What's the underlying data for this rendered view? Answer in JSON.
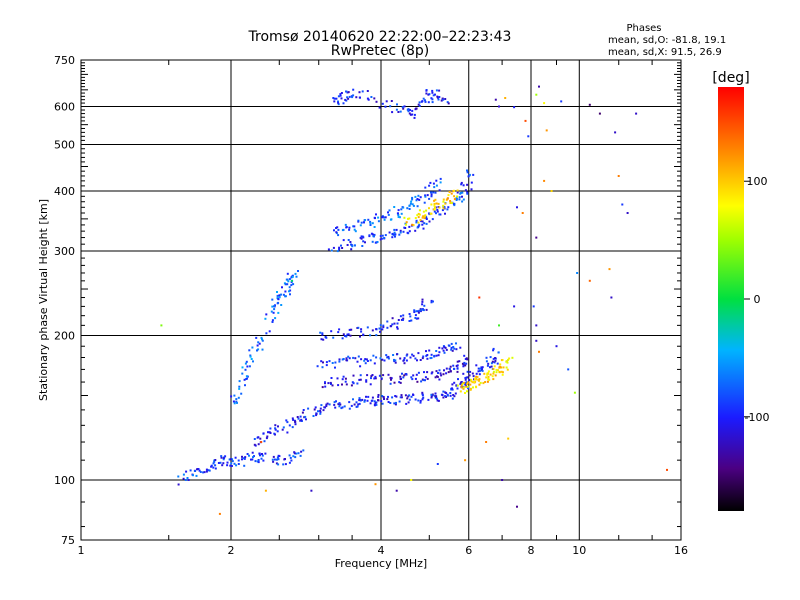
{
  "chart_data": {
    "type": "scatter",
    "title": "Tromsø 20140620 22:22:00–22:23:43",
    "subtitle": "RwPretec (8p)",
    "xlabel": "Frequency [MHz]",
    "ylabel": "Stationary phase Virtual Height [km]",
    "x_scale": "log",
    "y_scale": "log",
    "xlim": [
      1,
      16
    ],
    "ylim": [
      75,
      750
    ],
    "x_ticks": [
      1,
      2,
      4,
      6,
      8,
      10,
      16
    ],
    "y_ticks": [
      75,
      100,
      200,
      300,
      400,
      500,
      600,
      750
    ],
    "x_grid": [
      2,
      4,
      6,
      8,
      10
    ],
    "y_grid": [
      100,
      200,
      300,
      400,
      500,
      600
    ],
    "grid": true,
    "phase_stats": {
      "heading": "Phases",
      "o_line": "mean, sd,O: -81.8, 19.1",
      "x_line": "mean, sd,X:  91.5, 26.9"
    },
    "colorbar": {
      "label": "[deg]",
      "range": [
        -180,
        180
      ],
      "ticks": [
        100,
        0,
        -100
      ],
      "colormap": "rainbow (black-purple-blue-cyan-green-yellow-orange-red)"
    },
    "traces": [
      {
        "name_visible": false,
        "points": [
          [
            1.6,
            100
          ],
          [
            1.7,
            104
          ],
          [
            1.85,
            108
          ],
          [
            1.95,
            110
          ],
          [
            2.05,
            109
          ],
          [
            2.2,
            112
          ],
          [
            2.4,
            111
          ],
          [
            2.6,
            110
          ],
          [
            2.8,
            113
          ]
        ],
        "phase": -90
      },
      {
        "name_visible": false,
        "points": [
          [
            2.2,
            120
          ],
          [
            2.4,
            125
          ],
          [
            2.6,
            130
          ],
          [
            2.8,
            136
          ],
          [
            3.0,
            140
          ],
          [
            3.2,
            143
          ],
          [
            3.5,
            145
          ],
          [
            3.8,
            146
          ],
          [
            4.0,
            147
          ],
          [
            4.3,
            147
          ],
          [
            4.6,
            148
          ],
          [
            5.0,
            149
          ],
          [
            5.3,
            150
          ],
          [
            5.6,
            153
          ],
          [
            5.8,
            158
          ],
          [
            6.0,
            163
          ],
          [
            6.3,
            168
          ],
          [
            6.6,
            175
          ],
          [
            6.9,
            185
          ]
        ],
        "phase": -100
      },
      {
        "name_visible": false,
        "points": [
          [
            5.8,
            155
          ],
          [
            6.0,
            157
          ],
          [
            6.2,
            159
          ],
          [
            6.5,
            162
          ],
          [
            6.8,
            167
          ],
          [
            7.0,
            172
          ],
          [
            7.2,
            180
          ]
        ],
        "phase": 95
      },
      {
        "name_visible": false,
        "points": [
          [
            3.0,
            160
          ],
          [
            3.4,
            161
          ],
          [
            3.8,
            162
          ],
          [
            4.2,
            162
          ],
          [
            4.6,
            163
          ],
          [
            5.0,
            165
          ],
          [
            5.4,
            168
          ],
          [
            5.7,
            173
          ],
          [
            6.0,
            180
          ]
        ],
        "phase": -110
      },
      {
        "name_visible": false,
        "points": [
          [
            3.0,
            175
          ],
          [
            3.4,
            176
          ],
          [
            3.8,
            177
          ],
          [
            4.2,
            178
          ],
          [
            4.6,
            180
          ],
          [
            5.0,
            183
          ],
          [
            5.4,
            187
          ],
          [
            5.7,
            192
          ]
        ],
        "phase": -95
      },
      {
        "name_visible": false,
        "points": [
          [
            3.0,
            200
          ],
          [
            3.4,
            202
          ],
          [
            3.8,
            205
          ],
          [
            4.2,
            210
          ],
          [
            4.5,
            218
          ],
          [
            4.8,
            225
          ],
          [
            5.0,
            235
          ]
        ],
        "phase": -100
      },
      {
        "name_visible": false,
        "points": [
          [
            3.2,
            305
          ],
          [
            3.5,
            312
          ],
          [
            3.8,
            318
          ],
          [
            4.1,
            322
          ],
          [
            4.4,
            330
          ],
          [
            4.7,
            340
          ],
          [
            5.0,
            352
          ],
          [
            5.3,
            365
          ],
          [
            5.6,
            380
          ],
          [
            5.9,
            400
          ],
          [
            6.1,
            440
          ]
        ],
        "phase": -90
      },
      {
        "name_visible": false,
        "points": [
          [
            3.2,
            330
          ],
          [
            3.5,
            336
          ],
          [
            3.8,
            345
          ],
          [
            4.1,
            352
          ],
          [
            4.4,
            365
          ],
          [
            4.7,
            380
          ],
          [
            5.0,
            398
          ],
          [
            5.3,
            420
          ]
        ],
        "phase": -80
      },
      {
        "name_visible": false,
        "points": [
          [
            4.5,
            345
          ],
          [
            4.8,
            355
          ],
          [
            5.1,
            368
          ],
          [
            5.4,
            382
          ],
          [
            5.7,
            400
          ]
        ],
        "phase": 95
      },
      {
        "name_visible": false,
        "points": [
          [
            3.2,
            610
          ],
          [
            3.4,
            630
          ],
          [
            3.6,
            640
          ],
          [
            4.2,
            600
          ],
          [
            4.6,
            580
          ],
          [
            4.9,
            620
          ],
          [
            5.1,
            640
          ],
          [
            5.4,
            610
          ]
        ],
        "phase": -100
      },
      {
        "name_visible": false,
        "points": [
          [
            2.4,
            220
          ],
          [
            2.5,
            240
          ],
          [
            2.6,
            255
          ],
          [
            2.7,
            270
          ],
          [
            2.3,
            200
          ],
          [
            2.2,
            180
          ],
          [
            2.1,
            160
          ],
          [
            2.0,
            140
          ]
        ],
        "phase": -75
      }
    ],
    "isolated_points": [
      [
        1.45,
        210,
        40
      ],
      [
        1.9,
        85,
        130
      ],
      [
        2.35,
        95,
        110
      ],
      [
        2.3,
        120,
        150
      ],
      [
        2.65,
        260,
        -10
      ],
      [
        2.9,
        95,
        -120
      ],
      [
        3.9,
        98,
        120
      ],
      [
        4.3,
        95,
        -130
      ],
      [
        4.6,
        100,
        80
      ],
      [
        5.2,
        108,
        -90
      ],
      [
        5.9,
        110,
        120
      ],
      [
        6.5,
        120,
        130
      ],
      [
        7.2,
        122,
        100
      ],
      [
        7.0,
        100,
        -130
      ],
      [
        7.5,
        88,
        -140
      ],
      [
        8.2,
        195,
        -120
      ],
      [
        8.3,
        185,
        130
      ],
      [
        9.0,
        190,
        -110
      ],
      [
        9.5,
        170,
        -80
      ],
      [
        9.8,
        152,
        50
      ],
      [
        8.2,
        320,
        -140
      ],
      [
        9.9,
        270,
        -60
      ],
      [
        10.5,
        260,
        140
      ],
      [
        11.5,
        275,
        120
      ],
      [
        11.6,
        240,
        -120
      ],
      [
        12.2,
        375,
        -90
      ],
      [
        12.5,
        360,
        -120
      ],
      [
        13.0,
        580,
        -120
      ],
      [
        12.0,
        430,
        130
      ],
      [
        11.0,
        580,
        -150
      ],
      [
        11.8,
        530,
        -120
      ],
      [
        10.5,
        605,
        -150
      ],
      [
        9.2,
        615,
        -90
      ],
      [
        8.3,
        660,
        -130
      ],
      [
        8.2,
        635,
        50
      ],
      [
        8.5,
        610,
        80
      ],
      [
        8.6,
        535,
        120
      ],
      [
        8.5,
        420,
        125
      ],
      [
        8.8,
        400,
        95
      ],
      [
        7.9,
        520,
        -90
      ],
      [
        7.8,
        560,
        150
      ],
      [
        6.9,
        600,
        -120
      ],
      [
        7.4,
        598,
        -100
      ],
      [
        6.8,
        620,
        -130
      ],
      [
        7.1,
        625,
        110
      ],
      [
        7.5,
        370,
        -110
      ],
      [
        7.7,
        360,
        130
      ],
      [
        6.3,
        240,
        160
      ],
      [
        7.4,
        230,
        -110
      ],
      [
        6.9,
        210,
        20
      ],
      [
        8.1,
        230,
        -90
      ],
      [
        8.2,
        210,
        -120
      ],
      [
        15.0,
        105,
        150
      ]
    ]
  }
}
